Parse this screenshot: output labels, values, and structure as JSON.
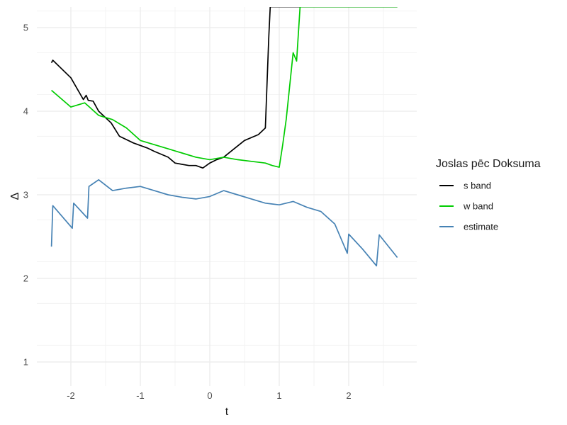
{
  "chart_data": {
    "type": "line",
    "xlabel": "t",
    "ylabel": "Δ",
    "xlim": [
      -2.5,
      2.95
    ],
    "ylim": [
      0.7,
      5.25
    ],
    "xticks": [
      -2,
      -1,
      0,
      1,
      2
    ],
    "yticks": [
      1,
      2,
      3,
      4,
      5
    ],
    "grid": true,
    "legend": {
      "title": "Joslas pēc Doksuma",
      "position": "right",
      "entries": [
        "s band",
        "w band",
        "estimate"
      ]
    },
    "series": [
      {
        "name": "s band",
        "color": "#000000",
        "x": [
          -2.28,
          -2.26,
          -2.0,
          -1.82,
          -1.78,
          -1.75,
          -1.68,
          -1.6,
          -1.42,
          -1.3,
          -1.1,
          -0.9,
          -0.8,
          -0.6,
          -0.5,
          -0.3,
          -0.2,
          -0.1,
          0.0,
          0.1,
          0.2,
          0.35,
          0.5,
          0.7,
          0.8,
          0.85,
          0.87,
          1.2,
          2.7
        ],
        "y": [
          4.58,
          4.61,
          4.4,
          4.14,
          4.19,
          4.13,
          4.12,
          4.0,
          3.86,
          3.7,
          3.62,
          3.56,
          3.52,
          3.45,
          3.38,
          3.35,
          3.35,
          3.32,
          3.38,
          3.42,
          3.45,
          3.55,
          3.65,
          3.72,
          3.8,
          4.9,
          5.25,
          5.25,
          5.25
        ]
      },
      {
        "name": "w band",
        "color": "#00cc00",
        "x": [
          -2.28,
          -2.0,
          -1.8,
          -1.6,
          -1.4,
          -1.2,
          -1.0,
          -0.8,
          -0.6,
          -0.4,
          -0.2,
          0.0,
          0.2,
          0.4,
          0.6,
          0.8,
          0.9,
          1.0,
          1.05,
          1.1,
          1.2,
          1.25,
          1.3,
          2.7
        ],
        "y": [
          4.25,
          4.05,
          4.1,
          3.95,
          3.9,
          3.8,
          3.65,
          3.6,
          3.55,
          3.5,
          3.45,
          3.42,
          3.45,
          3.42,
          3.4,
          3.38,
          3.35,
          3.33,
          3.6,
          3.9,
          4.7,
          4.6,
          5.25,
          5.25
        ]
      },
      {
        "name": "estimate",
        "color": "#4682b4",
        "x": [
          -2.28,
          -2.26,
          -1.98,
          -1.96,
          -1.76,
          -1.74,
          -1.6,
          -1.4,
          -1.2,
          -1.0,
          -0.8,
          -0.6,
          -0.4,
          -0.2,
          0.0,
          0.2,
          0.4,
          0.6,
          0.8,
          1.0,
          1.2,
          1.4,
          1.6,
          1.8,
          1.98,
          2.0,
          2.2,
          2.4,
          2.44,
          2.7
        ],
        "y": [
          2.38,
          2.87,
          2.6,
          2.9,
          2.72,
          3.1,
          3.18,
          3.05,
          3.08,
          3.1,
          3.05,
          3.0,
          2.97,
          2.95,
          2.98,
          3.05,
          3.0,
          2.95,
          2.9,
          2.88,
          2.92,
          2.85,
          2.8,
          2.65,
          2.3,
          2.53,
          2.35,
          2.15,
          2.52,
          2.25
        ]
      }
    ]
  }
}
